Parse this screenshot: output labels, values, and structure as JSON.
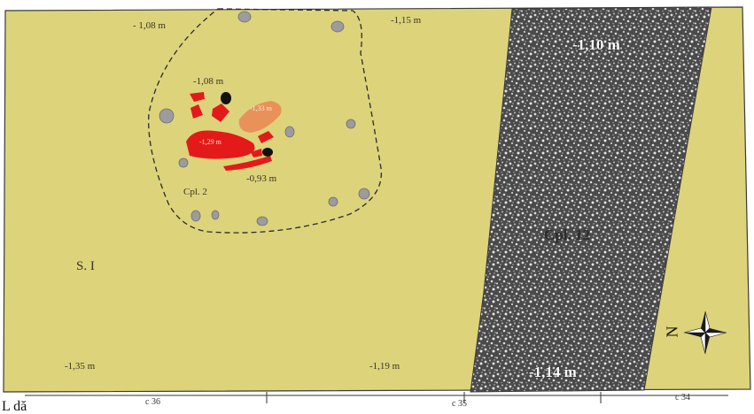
{
  "colors": {
    "ground": "#ddd37b",
    "outline": "#3a3a3a",
    "pit_texture_dark": "#3d3d3d",
    "pit_texture_light": "#d8d8d8",
    "stone": "#9c9c9c",
    "burnt_red": "#e41a1a",
    "orange_patch": "#e8925a",
    "charcoal": "#111111"
  },
  "labels": {
    "section": "S. I",
    "complex_2": "Cpl. 2",
    "complex_12": "Cpl. 12",
    "depths": {
      "top_left": "- 1,08 m",
      "top_center": "-1,15 m",
      "pit_top": "-1,10 m",
      "hearth_upper": "-1,08 m",
      "orange_patch": "-1,33 m",
      "red_patch": "-1,29 m",
      "hearth_lower": "-0,93 m",
      "bottom_left": "-1,35 m",
      "bottom_center": "-1,19 m",
      "pit_bottom": "-1,14 m"
    },
    "grid": {
      "c36": "c 36",
      "c35": "c 35",
      "c34": "c 34"
    },
    "legend_partial": "L       dă"
  },
  "icons": {
    "compass": "north-arrow-compass-icon",
    "north_letter": "N"
  }
}
